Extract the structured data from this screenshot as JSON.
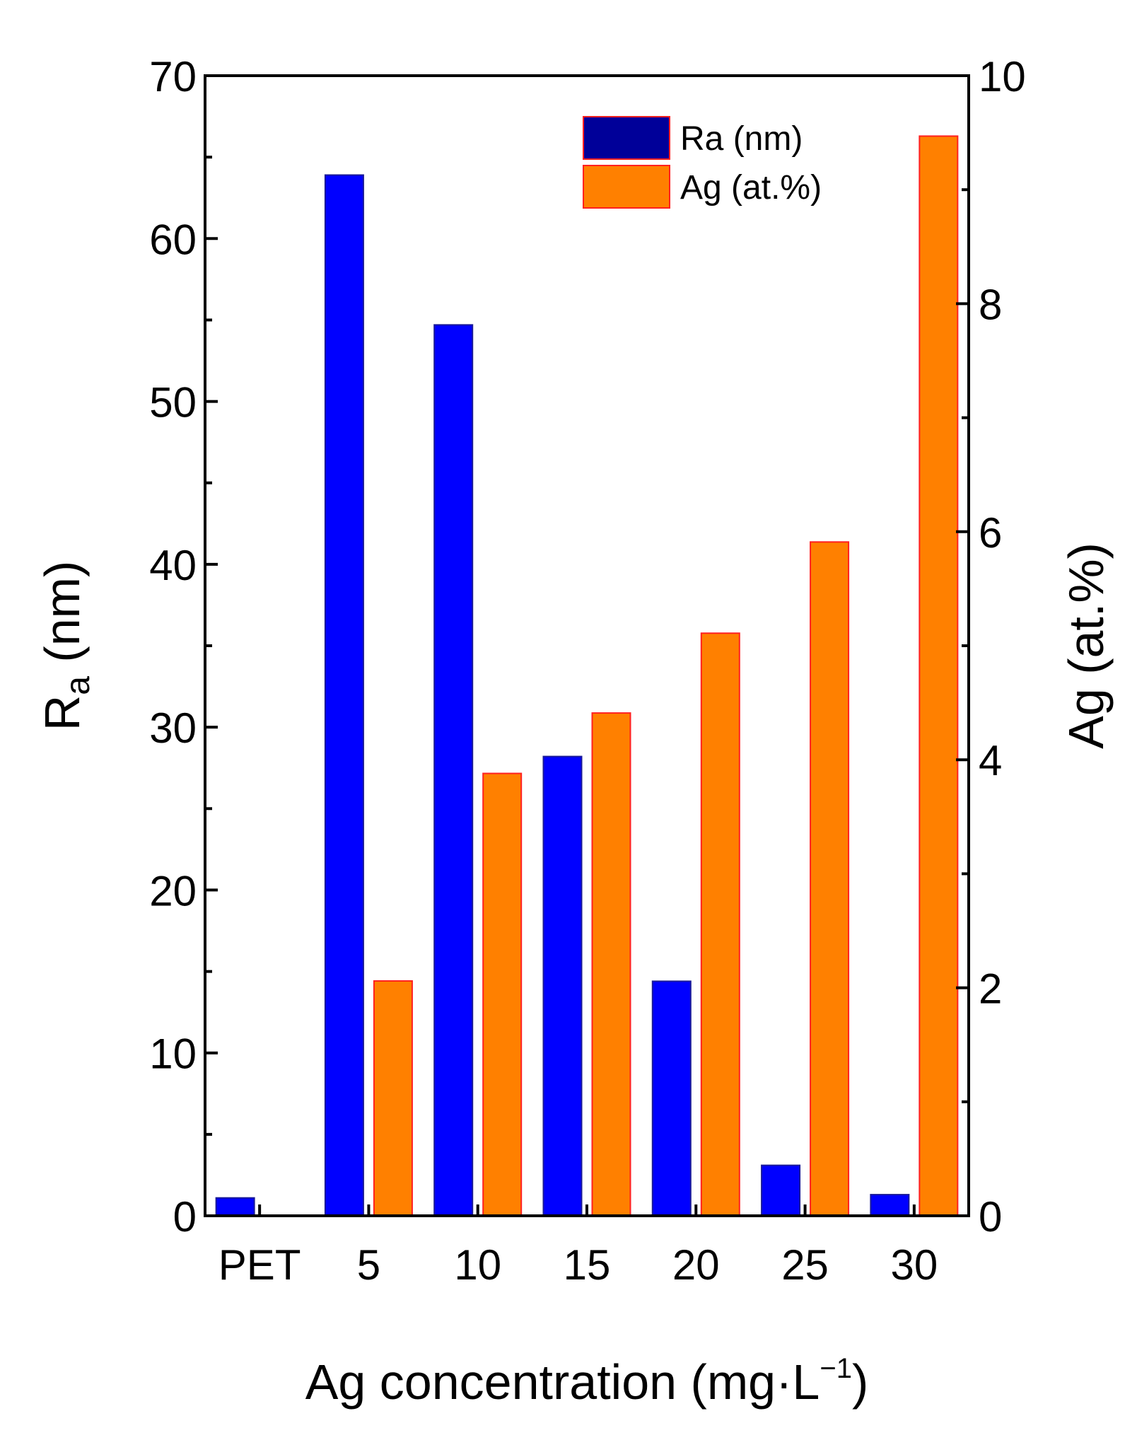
{
  "chart_data": {
    "type": "bar",
    "categories": [
      "PET",
      "5",
      "10",
      "15",
      "20",
      "25",
      "30"
    ],
    "xlabel": "Ag concentration (mg·L⁻¹)",
    "xlabel_main": "Ag concentration (mg·L",
    "xlabel_sup": "−1",
    "xlabel_close": ")",
    "ylabel_main": "R",
    "ylabel_sub": "a",
    "ylabel_rest": " (nm)",
    "y2label": "Ag (at.%)",
    "ylim": [
      0,
      70
    ],
    "yticks": [
      0,
      10,
      20,
      30,
      40,
      50,
      60,
      70
    ],
    "y2lim": [
      0,
      10
    ],
    "y2ticks": [
      0,
      2,
      4,
      6,
      8,
      10
    ],
    "legend_position": "top-right",
    "series": [
      {
        "name": "Ra (nm)",
        "axis": "left",
        "color": "#0000ff",
        "legend_color": "#000099",
        "edge": "#1a1a99",
        "values": [
          1.1,
          63.9,
          54.7,
          28.2,
          14.4,
          3.1,
          1.3
        ]
      },
      {
        "name": "Ag (at.%)",
        "axis": "right",
        "color": "#ff8000",
        "legend_color": "#ff8000",
        "edge": "#ff2020",
        "values": [
          0,
          2.06,
          3.88,
          4.41,
          5.11,
          5.91,
          9.47
        ]
      }
    ]
  }
}
